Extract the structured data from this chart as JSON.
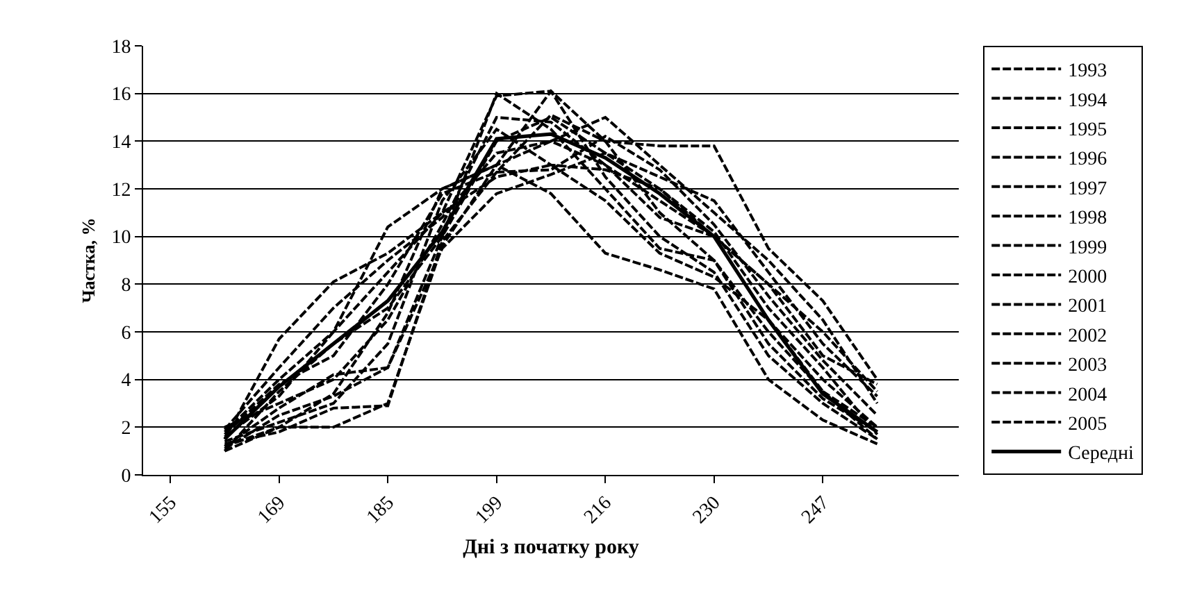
{
  "chart_data": {
    "type": "line",
    "xlabel": "Дні з початку року",
    "ylabel": "Частка, %",
    "categories": [
      "155",
      null,
      "169",
      null,
      "185",
      null,
      "199",
      null,
      "216",
      null,
      "230",
      null,
      "247",
      null,
      null
    ],
    "ylim": [
      0,
      18
    ],
    "yticks": [
      0,
      2,
      4,
      6,
      8,
      10,
      12,
      14,
      16,
      18
    ],
    "grid": "y",
    "legend": "right",
    "marker": "none",
    "series": [
      {
        "name": "1993",
        "color": "#000000",
        "line_style": "dashed",
        "values": [
          null,
          1.2,
          2.0,
          2.0,
          3.0,
          9.6,
          13.0,
          16.1,
          14.0,
          11.0,
          9.0,
          6.0,
          3.5,
          2.0,
          null
        ]
      },
      {
        "name": "1994",
        "color": "#000000",
        "line_style": "dashed",
        "values": [
          null,
          1.8,
          4.0,
          6.0,
          8.5,
          11.0,
          15.9,
          16.1,
          12.5,
          10.0,
          8.5,
          5.0,
          3.0,
          1.5,
          null
        ]
      },
      {
        "name": "1995",
        "color": "#000000",
        "line_style": "dashed",
        "values": [
          null,
          1.0,
          3.5,
          5.5,
          7.0,
          10.0,
          14.0,
          15.0,
          13.5,
          12.0,
          10.2,
          7.0,
          4.5,
          1.7,
          null
        ]
      },
      {
        "name": "1996",
        "color": "#000000",
        "line_style": "dashed",
        "values": [
          null,
          1.5,
          5.7,
          8.1,
          9.3,
          11.0,
          12.5,
          13.0,
          11.5,
          9.3,
          8.3,
          6.5,
          4.0,
          2.0,
          null
        ]
      },
      {
        "name": "1997",
        "color": "#000000",
        "line_style": "dashed",
        "values": [
          null,
          2.0,
          3.0,
          4.0,
          6.5,
          10.5,
          15.0,
          14.8,
          13.0,
          10.8,
          10.0,
          8.0,
          6.0,
          3.5,
          null
        ]
      },
      {
        "name": "1998",
        "color": "#000000",
        "line_style": "dashed",
        "values": [
          null,
          1.3,
          1.8,
          2.8,
          2.9,
          9.8,
          12.7,
          15.1,
          14.0,
          13.8,
          13.8,
          9.5,
          7.3,
          4.0,
          null
        ]
      },
      {
        "name": "1999",
        "color": "#000000",
        "line_style": "dashed",
        "values": [
          null,
          1.1,
          2.5,
          3.3,
          4.5,
          9.5,
          11.8,
          12.6,
          13.5,
          12.5,
          11.5,
          8.5,
          5.5,
          3.3,
          null
        ]
      },
      {
        "name": "2000",
        "color": "#000000",
        "line_style": "dashed",
        "values": [
          null,
          1.6,
          3.3,
          6.0,
          10.4,
          12.0,
          13.0,
          11.8,
          9.3,
          8.6,
          7.8,
          4.0,
          2.3,
          1.3,
          null
        ]
      },
      {
        "name": "2001",
        "color": "#000000",
        "line_style": "dashed",
        "values": [
          null,
          1.4,
          2.2,
          3.0,
          5.5,
          11.5,
          14.5,
          13.0,
          12.8,
          12.0,
          10.0,
          8.0,
          5.0,
          3.8,
          null
        ]
      },
      {
        "name": "2002",
        "color": "#000000",
        "line_style": "dashed",
        "values": [
          null,
          1.9,
          4.5,
          7.0,
          9.0,
          10.8,
          13.5,
          14.0,
          15.0,
          13.0,
          11.0,
          9.0,
          6.5,
          3.0,
          null
        ]
      },
      {
        "name": "2003",
        "color": "#000000",
        "line_style": "dashed",
        "values": [
          null,
          1.2,
          2.8,
          4.2,
          4.5,
          10.0,
          16.0,
          14.5,
          12.0,
          9.5,
          9.0,
          5.5,
          3.2,
          1.8,
          null
        ]
      },
      {
        "name": "2004",
        "color": "#000000",
        "line_style": "dashed",
        "values": [
          null,
          1.7,
          3.8,
          5.0,
          8.0,
          11.8,
          12.7,
          12.8,
          14.2,
          12.8,
          10.5,
          7.5,
          4.8,
          2.5,
          null
        ]
      },
      {
        "name": "2005",
        "color": "#000000",
        "line_style": "dashed",
        "values": [
          null,
          1.0,
          2.0,
          3.4,
          6.8,
          12.0,
          13.0,
          14.0,
          13.0,
          11.5,
          10.0,
          6.5,
          3.5,
          1.5,
          null
        ]
      },
      {
        "name": "Середні",
        "color": "#000000",
        "line_style": "solid",
        "values": [
          null,
          1.5,
          3.7,
          5.5,
          7.3,
          10.2,
          14.1,
          14.3,
          13.3,
          11.8,
          10.0,
          6.5,
          3.4,
          1.8,
          null
        ]
      }
    ]
  }
}
